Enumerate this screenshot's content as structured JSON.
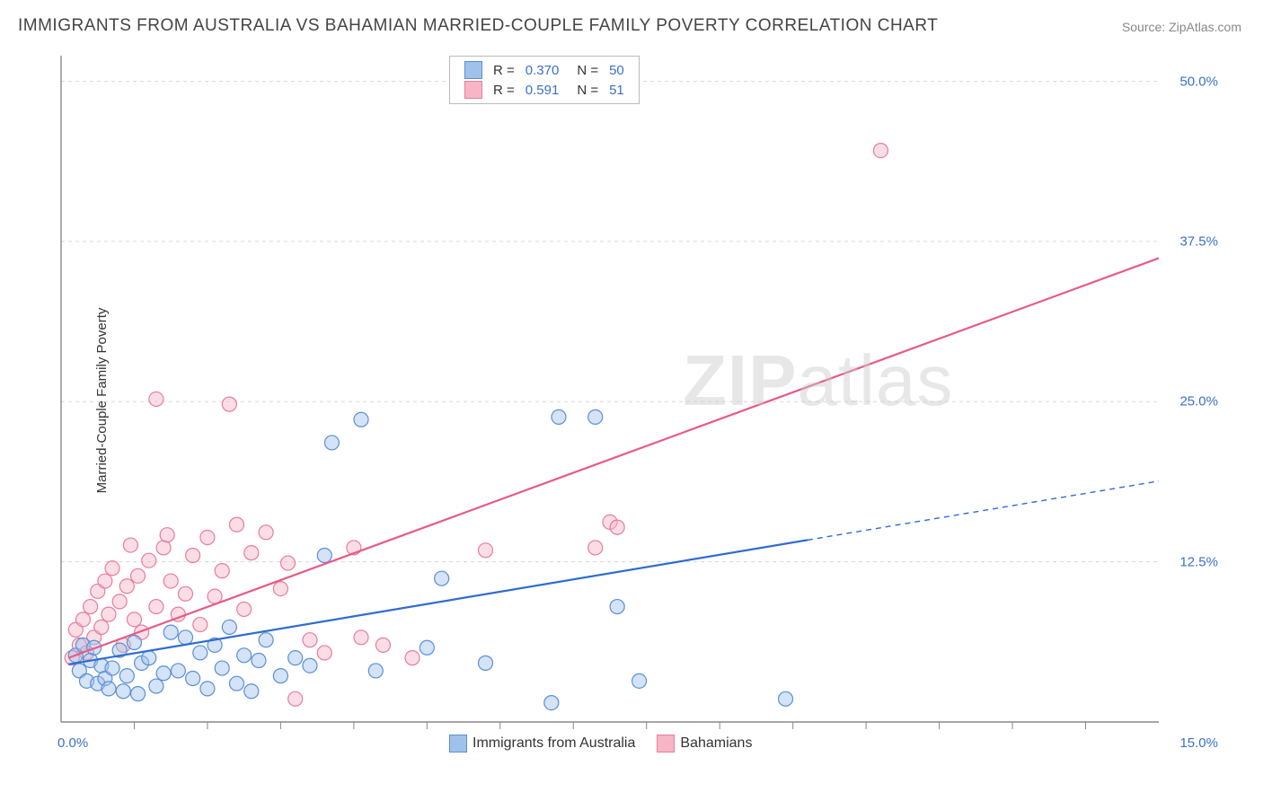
{
  "title": "IMMIGRANTS FROM AUSTRALIA VS BAHAMIAN MARRIED-COUPLE FAMILY POVERTY CORRELATION CHART",
  "source": "Source: ZipAtlas.com",
  "ylabel": "Married-Couple Family Poverty",
  "watermark": {
    "part1": "ZIP",
    "part2": "atlas"
  },
  "chart": {
    "type": "scatter",
    "background_color": "#ffffff",
    "grid_color": "#d8d8d8",
    "axis_color": "#888888",
    "tick_color": "#888888",
    "xlim": [
      0,
      15
    ],
    "ylim": [
      0,
      52
    ],
    "x_axis_label_min": "0.0%",
    "x_axis_label_max": "15.0%",
    "y_ticks": [
      12.5,
      25.0,
      37.5,
      50.0
    ],
    "y_tick_labels": [
      "12.5%",
      "25.0%",
      "37.5%",
      "50.0%"
    ],
    "x_minor_ticks": [
      1,
      2,
      3,
      4,
      5,
      6,
      7,
      8,
      9,
      10,
      11,
      12,
      13,
      14
    ],
    "marker_radius": 8,
    "marker_fill_opacity": 0.45,
    "marker_stroke_width": 1.2,
    "line_width": 2.2,
    "label_fontsize": 15,
    "axis_label_color": "#3b6fc9"
  },
  "series": [
    {
      "id": "australia",
      "label": "Immigrants from Australia",
      "color_fill": "#9fc1ea",
      "color_stroke": "#5a8fd6",
      "line_color": "#2e6cd1",
      "r_value": "0.370",
      "n_value": "50",
      "trend": {
        "x1": 0.1,
        "y1": 4.5,
        "x2": 10.2,
        "y2": 14.2,
        "dash_x2": 15.0,
        "dash_y2": 18.8
      },
      "points": [
        [
          0.2,
          5.2
        ],
        [
          0.25,
          4.0
        ],
        [
          0.3,
          6.0
        ],
        [
          0.35,
          3.2
        ],
        [
          0.4,
          4.8
        ],
        [
          0.45,
          5.8
        ],
        [
          0.5,
          3.0
        ],
        [
          0.55,
          4.4
        ],
        [
          0.6,
          3.4
        ],
        [
          0.65,
          2.6
        ],
        [
          0.7,
          4.2
        ],
        [
          0.8,
          5.6
        ],
        [
          0.85,
          2.4
        ],
        [
          0.9,
          3.6
        ],
        [
          1.0,
          6.2
        ],
        [
          1.05,
          2.2
        ],
        [
          1.1,
          4.6
        ],
        [
          1.2,
          5.0
        ],
        [
          1.3,
          2.8
        ],
        [
          1.4,
          3.8
        ],
        [
          1.5,
          7.0
        ],
        [
          1.6,
          4.0
        ],
        [
          1.7,
          6.6
        ],
        [
          1.8,
          3.4
        ],
        [
          1.9,
          5.4
        ],
        [
          2.0,
          2.6
        ],
        [
          2.1,
          6.0
        ],
        [
          2.2,
          4.2
        ],
        [
          2.3,
          7.4
        ],
        [
          2.4,
          3.0
        ],
        [
          2.5,
          5.2
        ],
        [
          2.6,
          2.4
        ],
        [
          2.7,
          4.8
        ],
        [
          2.8,
          6.4
        ],
        [
          3.0,
          3.6
        ],
        [
          3.2,
          5.0
        ],
        [
          3.4,
          4.4
        ],
        [
          3.6,
          13.0
        ],
        [
          3.7,
          21.8
        ],
        [
          4.1,
          23.6
        ],
        [
          5.2,
          11.2
        ],
        [
          5.8,
          4.6
        ],
        [
          6.7,
          1.5
        ],
        [
          6.8,
          23.8
        ],
        [
          7.3,
          23.8
        ],
        [
          7.6,
          9.0
        ],
        [
          7.9,
          3.2
        ],
        [
          9.9,
          1.8
        ],
        [
          5.0,
          5.8
        ],
        [
          4.3,
          4.0
        ]
      ]
    },
    {
      "id": "bahamians",
      "label": "Bahamians",
      "color_fill": "#f6b6c6",
      "color_stroke": "#e87c9c",
      "line_color": "#e85a85",
      "r_value": "0.591",
      "n_value": "51",
      "trend": {
        "x1": 0.1,
        "y1": 5.0,
        "x2": 15.0,
        "y2": 36.2
      },
      "points": [
        [
          0.15,
          5.0
        ],
        [
          0.2,
          7.2
        ],
        [
          0.25,
          6.0
        ],
        [
          0.3,
          8.0
        ],
        [
          0.35,
          5.4
        ],
        [
          0.4,
          9.0
        ],
        [
          0.45,
          6.6
        ],
        [
          0.5,
          10.2
        ],
        [
          0.55,
          7.4
        ],
        [
          0.6,
          11.0
        ],
        [
          0.65,
          8.4
        ],
        [
          0.7,
          12.0
        ],
        [
          0.8,
          9.4
        ],
        [
          0.85,
          6.0
        ],
        [
          0.9,
          10.6
        ],
        [
          1.0,
          8.0
        ],
        [
          1.05,
          11.4
        ],
        [
          1.1,
          7.0
        ],
        [
          1.2,
          12.6
        ],
        [
          1.3,
          9.0
        ],
        [
          1.4,
          13.6
        ],
        [
          1.5,
          11.0
        ],
        [
          1.6,
          8.4
        ],
        [
          1.7,
          10.0
        ],
        [
          1.8,
          13.0
        ],
        [
          1.9,
          7.6
        ],
        [
          2.0,
          14.4
        ],
        [
          2.1,
          9.8
        ],
        [
          2.2,
          11.8
        ],
        [
          2.4,
          15.4
        ],
        [
          2.5,
          8.8
        ],
        [
          2.6,
          13.2
        ],
        [
          2.8,
          14.8
        ],
        [
          3.0,
          10.4
        ],
        [
          3.1,
          12.4
        ],
        [
          3.2,
          1.8
        ],
        [
          3.4,
          6.4
        ],
        [
          3.6,
          5.4
        ],
        [
          4.0,
          13.6
        ],
        [
          4.1,
          6.6
        ],
        [
          4.4,
          6.0
        ],
        [
          4.8,
          5.0
        ],
        [
          5.8,
          13.4
        ],
        [
          7.3,
          13.6
        ],
        [
          7.5,
          15.6
        ],
        [
          7.6,
          15.2
        ],
        [
          2.3,
          24.8
        ],
        [
          1.3,
          25.2
        ],
        [
          11.2,
          44.6
        ],
        [
          0.95,
          13.8
        ],
        [
          1.45,
          14.6
        ]
      ]
    }
  ],
  "legend_top": {
    "r_label": "R =",
    "n_label": "N ="
  },
  "legend_bottom_items": [
    "Immigrants from Australia",
    "Bahamians"
  ]
}
